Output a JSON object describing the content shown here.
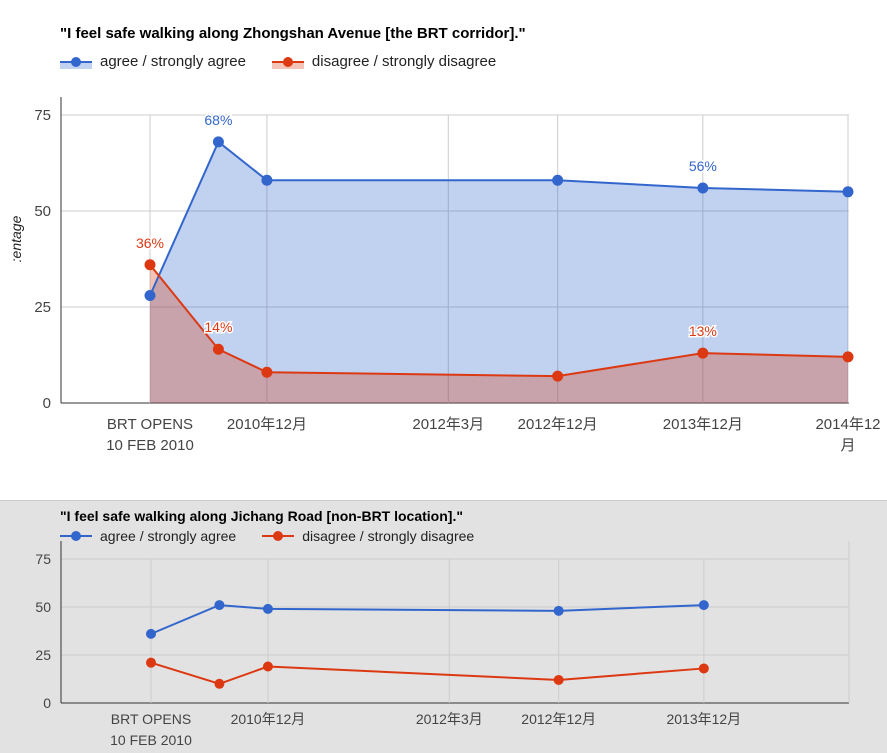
{
  "chart_data": [
    {
      "type": "area",
      "title": "\"I feel safe walking along Zhongshan Avenue [the BRT corridor].\"",
      "ylabel": "Percentage",
      "ylabel_visible": ":entage",
      "ylim": [
        0,
        75
      ],
      "yticks": [
        0,
        25,
        50,
        75
      ],
      "x": [
        "2010-02-10",
        "2010-08-01",
        "2010-12-01",
        "2012-12-01",
        "2013-12-01",
        "2014-12-01"
      ],
      "xticks": [
        {
          "date": "2010-02-10",
          "label": "BRT OPENS\n10 FEB 2010"
        },
        {
          "date": "2010-12-01",
          "label": "2010年12月"
        },
        {
          "date": "2012-03-01",
          "label": "2012年3月"
        },
        {
          "date": "2012-12-01",
          "label": "2012年12月"
        },
        {
          "date": "2013-12-01",
          "label": "2013年12月"
        },
        {
          "date": "2014-12-01",
          "label": "2014年12\n月"
        }
      ],
      "series": [
        {
          "name": "agree / strongly agree",
          "color": "#3366cc",
          "values": [
            28,
            68,
            58,
            58,
            56,
            55
          ],
          "labels": [
            {
              "index": 1,
              "text": "68%"
            },
            {
              "index": 4,
              "text": "56%"
            }
          ]
        },
        {
          "name": "disagree / strongly disagree",
          "color": "#dc3912",
          "values": [
            36,
            14,
            8,
            7,
            13,
            12
          ],
          "labels": [
            {
              "index": 0,
              "text": "36%"
            },
            {
              "index": 1,
              "text": "14%"
            },
            {
              "index": 4,
              "text": "13%"
            }
          ]
        }
      ],
      "grid": true,
      "legend": "top-left"
    },
    {
      "type": "line",
      "title": "\"I feel safe walking along Jichang Road [non-BRT location].\"",
      "ylim": [
        0,
        75
      ],
      "yticks": [
        0,
        25,
        50,
        75
      ],
      "x": [
        "2010-02-10",
        "2010-08-01",
        "2010-12-01",
        "2012-12-01",
        "2013-12-01"
      ],
      "xticks": [
        {
          "date": "2010-02-10",
          "label": "BRT OPENS\n10 FEB 2010"
        },
        {
          "date": "2010-12-01",
          "label": "2010年12月"
        },
        {
          "date": "2012-03-01",
          "label": "2012年3月"
        },
        {
          "date": "2012-12-01",
          "label": "2012年12月"
        },
        {
          "date": "2013-12-01",
          "label": "2013年12月"
        }
      ],
      "series": [
        {
          "name": "agree / strongly agree",
          "color": "#3366cc",
          "values": [
            36,
            51,
            49,
            48,
            51
          ]
        },
        {
          "name": "disagree / strongly disagree",
          "color": "#dc3912",
          "values": [
            21,
            10,
            19,
            12,
            18
          ]
        }
      ],
      "grid": true,
      "legend": "top-left"
    }
  ]
}
